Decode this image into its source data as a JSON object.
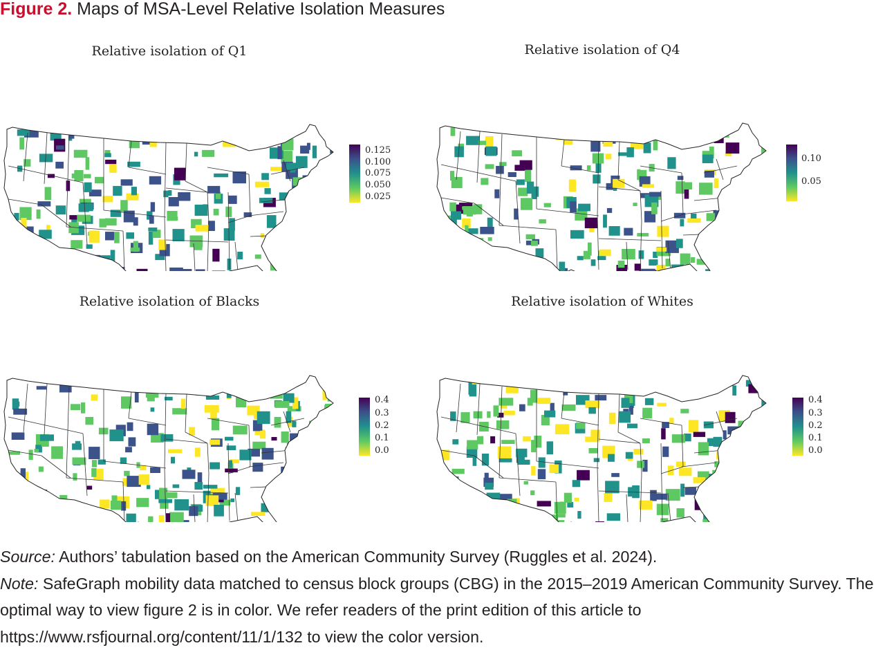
{
  "figure": {
    "label": "Figure 2.",
    "title": "Maps of MSA-Level Relative Isolation Measures"
  },
  "panels": [
    {
      "id": "q1",
      "title": "Relative isolation of Q1",
      "legend_ticks": [
        "0.125",
        "0.100",
        "0.075",
        "0.050",
        "0.025"
      ]
    },
    {
      "id": "q4",
      "title": "Relative isolation of Q4",
      "legend_ticks": [
        "0.10",
        "0.05"
      ]
    },
    {
      "id": "blacks",
      "title": "Relative isolation of Blacks",
      "legend_ticks": [
        "0.4",
        "0.3",
        "0.2",
        "0.1",
        "0.0"
      ]
    },
    {
      "id": "whites",
      "title": "Relative isolation of Whites",
      "legend_ticks": [
        "0.4",
        "0.3",
        "0.2",
        "0.1",
        "0.0"
      ]
    }
  ],
  "colors": {
    "viridis_dark": "#440154",
    "viridis_blue": "#3b528b",
    "viridis_teal": "#21918c",
    "viridis_green": "#5ec962",
    "viridis_yellow": "#fde725",
    "figure_label": "#c8102e"
  },
  "footer": {
    "source_label": "Source:",
    "source_text": " Authors’ tabulation based on the American Community Survey (Ruggles et al. 2024).",
    "note_label": "Note:",
    "note_text": " SafeGraph mobility data matched to census block groups (CBG) in the 2015–2019 American Community Survey. The optimal way to view figure 2 is in color. We refer readers of the print edition of this article to https://www.rsfjournal.org/content/11/1/132 to view the color version."
  }
}
